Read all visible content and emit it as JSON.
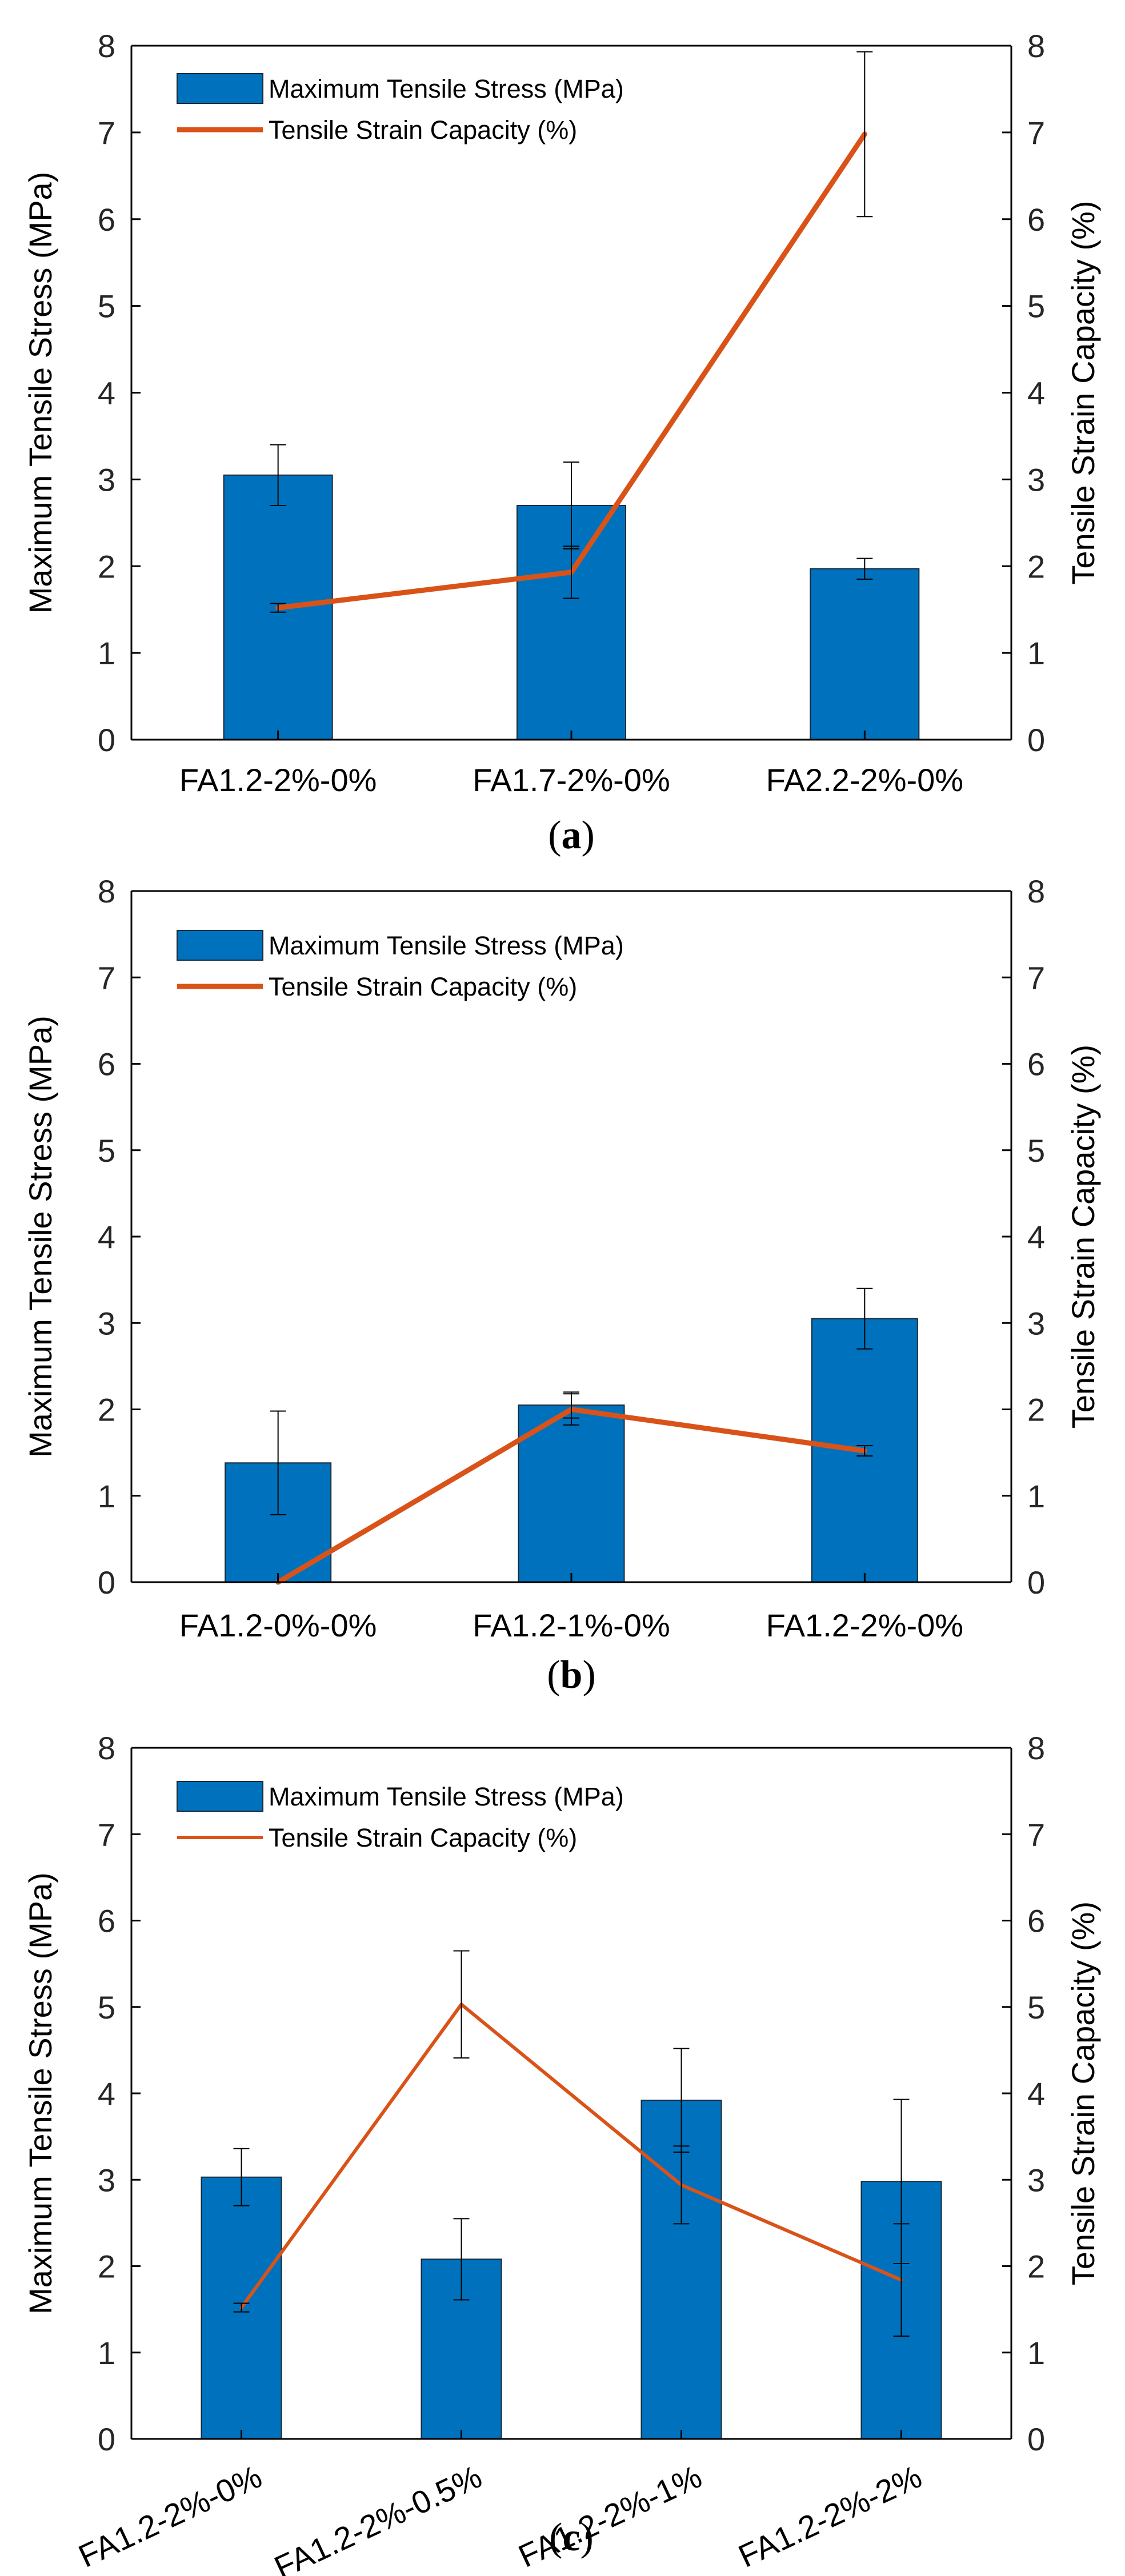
{
  "colors": {
    "bar": "#0072BD",
    "line": "#D95319",
    "axis": "#000000"
  },
  "chart_data": [
    {
      "type": "bar",
      "panel_label": "a",
      "legend": {
        "bar": "Maximum Tensile Stress (MPa)",
        "line": "Tensile Strain Capacity (%)",
        "placement": "top-left"
      },
      "ylabel": "Maximum Tensile Stress (MPa)",
      "y2label": "Tensile Strain Capacity (%)",
      "ylim": [
        0,
        8
      ],
      "y2lim": [
        0,
        8
      ],
      "yticks": [
        "0",
        "1",
        "2",
        "3",
        "4",
        "5",
        "6",
        "7",
        "8"
      ],
      "categories": [
        "FA1.2-2%-0%",
        "FA1.7-2%-0%",
        "FA2.2-2%-0%"
      ],
      "rotate_labels": false,
      "series": [
        {
          "name": "Maximum Tensile Stress (MPa)",
          "kind": "bar",
          "values": [
            3.05,
            2.7,
            1.97
          ],
          "errors": [
            0.35,
            0.5,
            0.12
          ]
        },
        {
          "name": "Tensile Strain Capacity (%)",
          "kind": "line",
          "values": [
            1.52,
            1.93,
            6.98
          ],
          "errors": [
            0.05,
            0.3,
            0.95
          ]
        }
      ]
    },
    {
      "type": "bar",
      "panel_label": "b",
      "legend": {
        "bar": "Maximum Tensile Stress (MPa)",
        "line": "Tensile Strain Capacity (%)",
        "placement": "top-left"
      },
      "ylabel": "Maximum Tensile Stress (MPa)",
      "y2label": "Tensile Strain Capacity (%)",
      "ylim": [
        0,
        8
      ],
      "y2lim": [
        0,
        8
      ],
      "yticks": [
        "0",
        "1",
        "2",
        "3",
        "4",
        "5",
        "6",
        "7",
        "8"
      ],
      "categories": [
        "FA1.2-0%-0%",
        "FA1.2-1%-0%",
        "FA1.2-2%-0%"
      ],
      "rotate_labels": false,
      "series": [
        {
          "name": "Maximum Tensile Stress (MPa)",
          "kind": "bar",
          "values": [
            1.38,
            2.05,
            3.05
          ],
          "errors": [
            0.6,
            0.15,
            0.35
          ]
        },
        {
          "name": "Tensile Strain Capacity (%)",
          "kind": "line",
          "values": [
            0.0,
            2.0,
            1.52
          ],
          "errors": [
            0.0,
            0.18,
            0.06
          ]
        }
      ]
    },
    {
      "type": "bar",
      "panel_label": "c",
      "legend": {
        "bar": "Maximum Tensile Stress (MPa)",
        "line": "Tensile Strain Capacity (%)",
        "placement": "top-left"
      },
      "ylabel": "Maximum Tensile Stress (MPa)",
      "y2label": "Tensile Strain Capacity (%)",
      "ylim": [
        0,
        8
      ],
      "y2lim": [
        0,
        8
      ],
      "yticks": [
        "0",
        "1",
        "2",
        "3",
        "4",
        "5",
        "6",
        "7",
        "8"
      ],
      "categories": [
        "FA1.2-2%-0%",
        "FA1.2-2%-0.5%",
        "FA1.2-2%-1%",
        "FA1.2-2%-2%"
      ],
      "rotate_labels": true,
      "series": [
        {
          "name": "Maximum Tensile Stress (MPa)",
          "kind": "bar",
          "values": [
            3.03,
            2.08,
            3.92,
            2.98
          ],
          "errors": [
            0.33,
            0.47,
            0.6,
            0.95
          ]
        },
        {
          "name": "Tensile Strain Capacity (%)",
          "kind": "line",
          "values": [
            1.52,
            5.03,
            2.94,
            1.84
          ],
          "errors": [
            0.05,
            0.62,
            0.45,
            0.65
          ]
        }
      ]
    }
  ]
}
